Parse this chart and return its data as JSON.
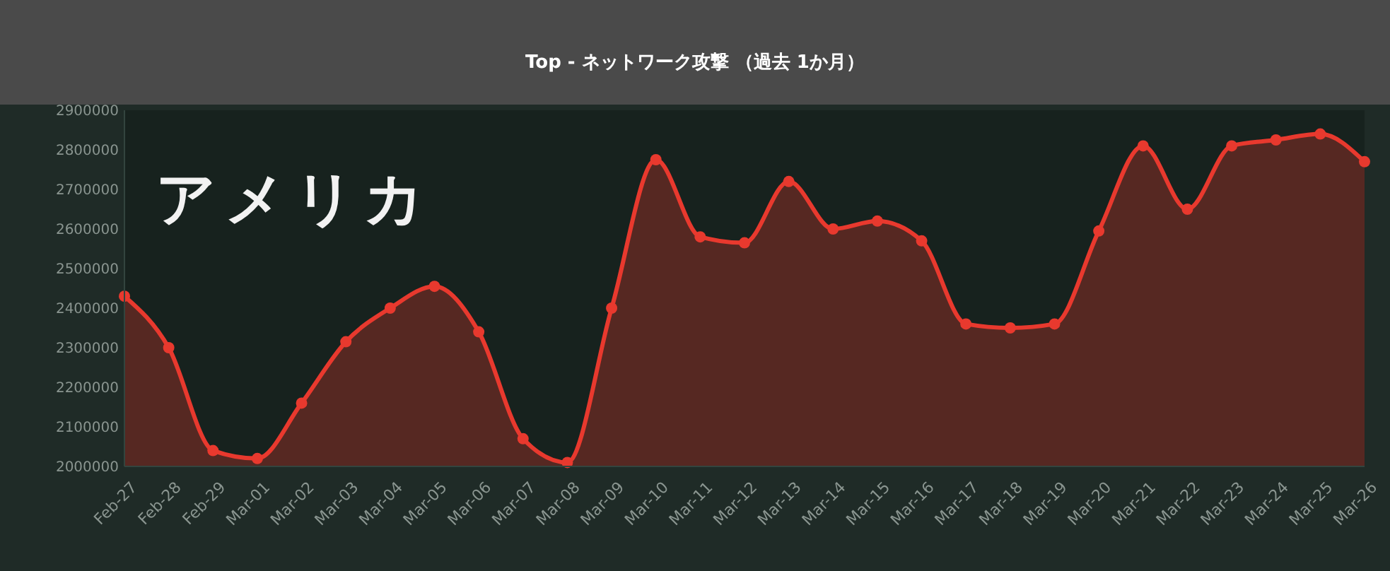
{
  "chart_data": {
    "type": "area",
    "title": "Top - ネットワーク攻撃 （過去 1か月）",
    "annotations": [
      "アメリカ"
    ],
    "categories": [
      "Feb-27",
      "Feb-28",
      "Feb-29",
      "Mar-01",
      "Mar-02",
      "Mar-03",
      "Mar-04",
      "Mar-05",
      "Mar-06",
      "Mar-07",
      "Mar-08",
      "Mar-09",
      "Mar-10",
      "Mar-11",
      "Mar-12",
      "Mar-13",
      "Mar-14",
      "Mar-15",
      "Mar-16",
      "Mar-17",
      "Mar-18",
      "Mar-19",
      "Mar-20",
      "Mar-21",
      "Mar-22",
      "Mar-23",
      "Mar-24",
      "Mar-25",
      "Mar-26"
    ],
    "series": [
      {
        "color": "#e8392e",
        "values": [
          2430000,
          2300000,
          2040000,
          2020000,
          2160000,
          2315000,
          2400000,
          2455000,
          2340000,
          2070000,
          2010000,
          2400000,
          2775000,
          2580000,
          2565000,
          2720000,
          2600000,
          2620000,
          2570000,
          2360000,
          2350000,
          2360000,
          2595000,
          2810000,
          2650000,
          2810000,
          2825000,
          2840000,
          2770000
        ]
      }
    ],
    "ylim": [
      2000000,
      2900000
    ],
    "yticks": [
      2000000,
      2100000,
      2200000,
      2300000,
      2400000,
      2500000,
      2600000,
      2700000,
      2800000,
      2900000
    ],
    "marker": "circle",
    "grid": false
  }
}
